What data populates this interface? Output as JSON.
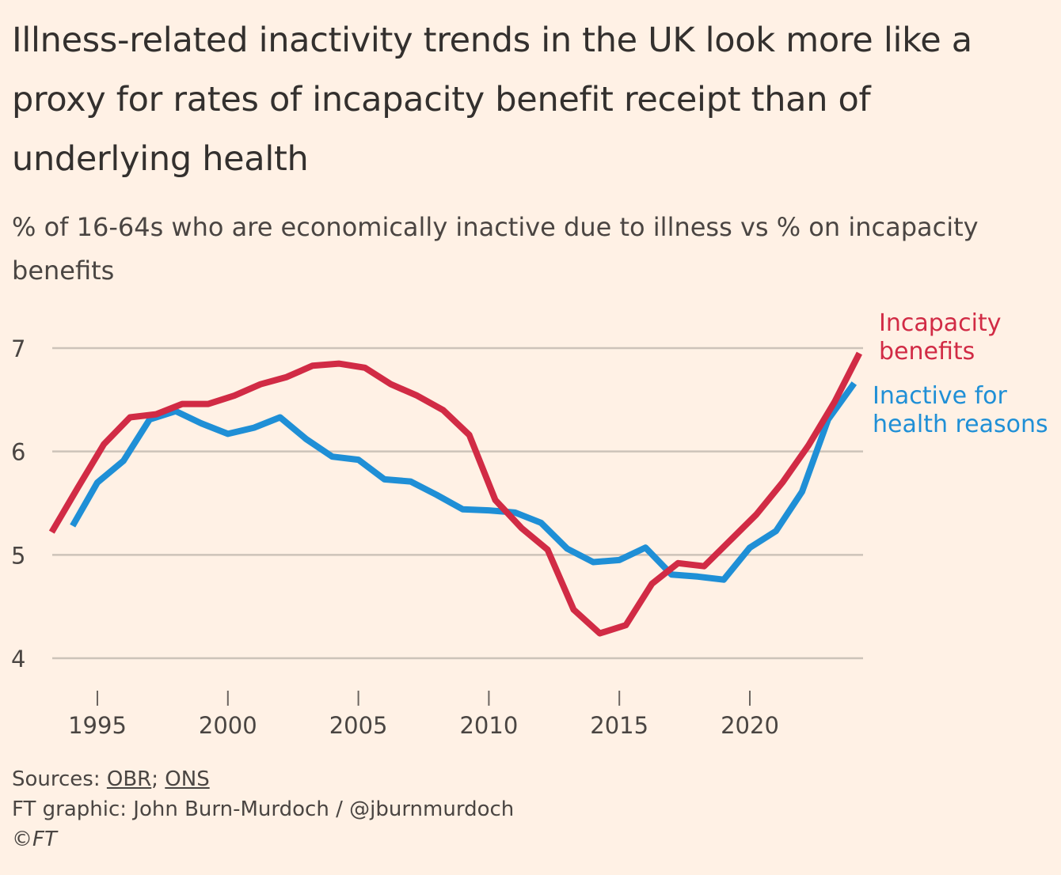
{
  "title": "Illness-related inactivity trends in the UK look more like a proxy for rates of incapacity benefit receipt than of underlying health",
  "subtitle": "% of 16-64s who are economically inactive due to illness vs % on incapacity benefits",
  "footer": {
    "sources_label": "Sources: ",
    "source_1": "OBR",
    "separator": "; ",
    "source_2": "ONS",
    "credit": "FT graphic: John Burn-Murdoch / @jburnmurdoch",
    "copyright": "©FT"
  },
  "chart_data": {
    "type": "line",
    "title": "Illness-related inactivity trends in the UK look more like a proxy for rates of incapacity benefit receipt than of underlying health",
    "xlabel": "",
    "ylabel": "%",
    "xlim": [
      1993.2,
      2024.4
    ],
    "ylim": [
      4,
      7
    ],
    "yticks": [
      4,
      5,
      6,
      7
    ],
    "xticks": [
      1995,
      2000,
      2005,
      2010,
      2015,
      2020
    ],
    "grid": true,
    "legend": "direct labels at right end of lines",
    "series": [
      {
        "name": "Incapacity benefits",
        "label_lines": [
          "Incapacity",
          "benefits"
        ],
        "color": "#d12b45",
        "x": [
          1993.25,
          1994.25,
          1995.25,
          1996.25,
          1997.25,
          1998.25,
          1999.25,
          2000.25,
          2001.25,
          2002.25,
          2003.25,
          2004.25,
          2005.25,
          2006.25,
          2007.25,
          2008.25,
          2009.25,
          2010.25,
          2011.25,
          2012.25,
          2013.25,
          2014.25,
          2015.25,
          2016.25,
          2017.25,
          2018.25,
          2019.25,
          2020.25,
          2021.25,
          2022.25,
          2023.25,
          2024.2
        ],
        "y": [
          5.22,
          5.65,
          6.07,
          6.33,
          6.36,
          6.46,
          6.46,
          6.54,
          6.65,
          6.72,
          6.83,
          6.85,
          6.81,
          6.65,
          6.54,
          6.4,
          6.16,
          5.53,
          5.26,
          5.05,
          4.47,
          4.24,
          4.32,
          4.72,
          4.92,
          4.89,
          5.14,
          5.39,
          5.7,
          6.06,
          6.48,
          6.95
        ]
      },
      {
        "name": "Inactive for health reasons",
        "label_lines": [
          "Inactive for",
          "health reasons"
        ],
        "color": "#1f8fd6",
        "x": [
          1994.05,
          1995,
          1996,
          1997,
          1998,
          1999,
          2000,
          2001,
          2002,
          2003,
          2004,
          2005,
          2006,
          2007,
          2008,
          2009,
          2010,
          2011,
          2012,
          2013,
          2014,
          2015,
          2016,
          2017,
          2018,
          2019,
          2020,
          2021,
          2022,
          2023,
          2024
        ],
        "y": [
          5.28,
          5.7,
          5.91,
          6.31,
          6.39,
          6.27,
          6.17,
          6.23,
          6.33,
          6.12,
          5.95,
          5.92,
          5.73,
          5.71,
          5.58,
          5.44,
          5.43,
          5.41,
          5.31,
          5.06,
          4.93,
          4.95,
          5.07,
          4.81,
          4.79,
          4.76,
          5.07,
          5.23,
          5.61,
          6.31,
          6.66
        ]
      }
    ]
  }
}
